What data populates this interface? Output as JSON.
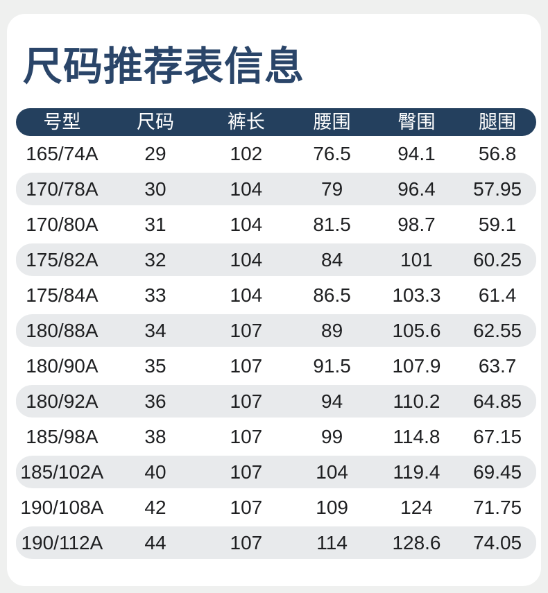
{
  "chart_data": {
    "type": "table",
    "title": "尺码推荐表信息",
    "columns": [
      "号型",
      "尺码",
      "裤长",
      "腰围",
      "臀围",
      "腿围"
    ],
    "rows": [
      [
        "165/74A",
        "29",
        "102",
        "76.5",
        "94.1",
        "56.8"
      ],
      [
        "170/78A",
        "30",
        "104",
        "79",
        "96.4",
        "57.95"
      ],
      [
        "170/80A",
        "31",
        "104",
        "81.5",
        "98.7",
        "59.1"
      ],
      [
        "175/82A",
        "32",
        "104",
        "84",
        "101",
        "60.25"
      ],
      [
        "175/84A",
        "33",
        "104",
        "86.5",
        "103.3",
        "61.4"
      ],
      [
        "180/88A",
        "34",
        "107",
        "89",
        "105.6",
        "62.55"
      ],
      [
        "180/90A",
        "35",
        "107",
        "91.5",
        "107.9",
        "63.7"
      ],
      [
        "180/92A",
        "36",
        "107",
        "94",
        "110.2",
        "64.85"
      ],
      [
        "185/98A",
        "38",
        "107",
        "99",
        "114.8",
        "67.15"
      ],
      [
        "185/102A",
        "40",
        "107",
        "104",
        "119.4",
        "69.45"
      ],
      [
        "190/108A",
        "42",
        "107",
        "109",
        "124",
        "71.75"
      ],
      [
        "190/112A",
        "44",
        "107",
        "114",
        "128.6",
        "74.05"
      ]
    ],
    "layout": {
      "grid": "off",
      "legend_position": "none",
      "striped_rows": "alternate, starting with second row"
    }
  },
  "colors": {
    "page_background": "#eff0ef",
    "card_background": "#ffffff",
    "title_text": "#2a4569",
    "header_background": "#24405e",
    "header_text": "#ffffff",
    "stripe_background": "#e8eaec",
    "cell_text": "#1e1f21"
  }
}
